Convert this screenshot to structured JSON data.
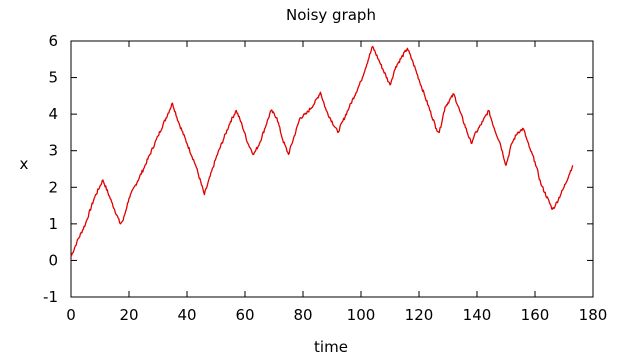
{
  "chart_data": {
    "type": "line",
    "title": "Noisy graph",
    "xlabel": "time",
    "ylabel": "x",
    "xlim": [
      0,
      180
    ],
    "ylim": [
      -1,
      6
    ],
    "xticks": [
      0,
      20,
      40,
      60,
      80,
      100,
      120,
      140,
      160,
      180
    ],
    "yticks": [
      -1,
      0,
      1,
      2,
      3,
      4,
      5,
      6
    ],
    "grid": false,
    "legend": "none",
    "series": [
      {
        "color": "#e00000",
        "x": [
          0,
          2,
          5,
          8,
          11,
          14,
          17,
          18,
          20,
          25,
          30,
          35,
          37,
          40,
          43,
          46,
          50,
          55,
          57,
          59,
          61,
          63,
          65,
          69,
          71,
          73,
          75,
          79,
          81,
          84,
          86,
          88,
          92,
          96,
          100,
          104,
          106,
          110,
          112,
          116,
          118,
          122,
          126,
          127,
          129,
          132,
          134,
          138,
          139,
          142,
          144,
          146,
          148,
          150,
          152,
          154,
          156,
          158,
          160,
          162,
          166,
          167,
          170,
          173
        ],
        "y": [
          0.1,
          0.5,
          1.0,
          1.7,
          2.2,
          1.6,
          1.0,
          1.1,
          1.7,
          2.5,
          3.4,
          4.3,
          3.8,
          3.2,
          2.6,
          1.8,
          2.8,
          3.8,
          4.1,
          3.7,
          3.2,
          2.9,
          3.2,
          4.1,
          3.9,
          3.3,
          2.9,
          3.9,
          4.0,
          4.3,
          4.6,
          4.1,
          3.5,
          4.2,
          4.9,
          5.85,
          5.5,
          4.8,
          5.3,
          5.8,
          5.4,
          4.5,
          3.6,
          3.5,
          4.2,
          4.55,
          4.1,
          3.2,
          3.4,
          3.8,
          4.1,
          3.6,
          3.2,
          2.6,
          3.2,
          3.5,
          3.6,
          3.1,
          2.7,
          2.1,
          1.4,
          1.5,
          2.0,
          2.6
        ]
      }
    ]
  }
}
